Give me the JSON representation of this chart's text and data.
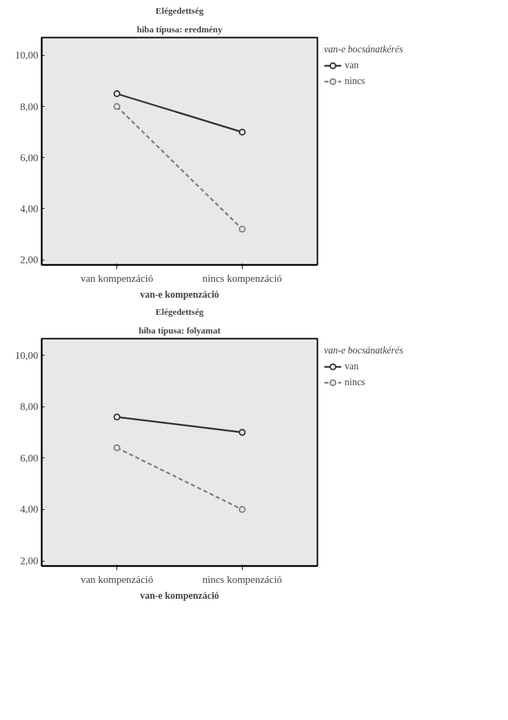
{
  "chart_data": [
    {
      "type": "line",
      "title": "Elégedettség",
      "subtitle": "hiba típusa: eredmény",
      "xlabel": "van-e kompenzáció",
      "legend_title": "van-e bocsánatkérés",
      "categories": [
        "van kompenzáció",
        "nincs kompenzáció"
      ],
      "ylim": [
        1.8,
        10.7
      ],
      "yticks": [
        {
          "value": 2,
          "label": "2,00"
        },
        {
          "value": 4,
          "label": "4,00"
        },
        {
          "value": 6,
          "label": "6,00"
        },
        {
          "value": 8,
          "label": "8,00"
        },
        {
          "value": 10,
          "label": "10,00"
        }
      ],
      "grid": false,
      "legend": "right",
      "marker": "circle",
      "series": [
        {
          "name": "van",
          "color": "#333333",
          "line_style": "solid",
          "values": [
            8.5,
            7.0
          ]
        },
        {
          "name": "nincs",
          "color": "#808080",
          "line_style": "dashed",
          "values": [
            8.0,
            3.2
          ]
        }
      ]
    },
    {
      "type": "line",
      "title": "Elégedettség",
      "subtitle": "hiba típusa: folyamat",
      "xlabel": "van-e kompenzáció",
      "legend_title": "van-e bocsánatkérés",
      "categories": [
        "van kompenzáció",
        "nincs kompenzáció"
      ],
      "ylim": [
        1.8,
        10.65
      ],
      "yticks": [
        {
          "value": 2,
          "label": "2,00"
        },
        {
          "value": 4,
          "label": "4,00"
        },
        {
          "value": 6,
          "label": "6,00"
        },
        {
          "value": 8,
          "label": "8,00"
        },
        {
          "value": 10,
          "label": "10,00"
        }
      ],
      "grid": false,
      "legend": "right",
      "marker": "circle",
      "series": [
        {
          "name": "van",
          "color": "#333333",
          "line_style": "solid",
          "values": [
            7.6,
            7.0
          ]
        },
        {
          "name": "nincs",
          "color": "#808080",
          "line_style": "dashed",
          "values": [
            6.4,
            4.0
          ]
        }
      ]
    }
  ]
}
